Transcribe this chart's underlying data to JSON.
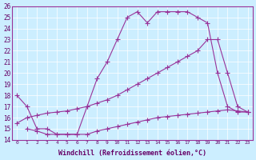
{
  "xlabel": "Windchill (Refroidissement éolien,°C)",
  "bg_color": "#cceeff",
  "line_color": "#993399",
  "xlim": [
    -0.5,
    23.5
  ],
  "ylim": [
    14,
    26
  ],
  "xticks": [
    0,
    1,
    2,
    3,
    4,
    5,
    6,
    7,
    8,
    9,
    10,
    11,
    12,
    13,
    14,
    15,
    16,
    17,
    18,
    19,
    20,
    21,
    22,
    23
  ],
  "yticks": [
    14,
    15,
    16,
    17,
    18,
    19,
    20,
    21,
    22,
    23,
    24,
    25,
    26
  ],
  "curve1_x": [
    0,
    1,
    2,
    3,
    4,
    5,
    6,
    7,
    8,
    9,
    10,
    11,
    12,
    13,
    14,
    15,
    16,
    17,
    18,
    19,
    20,
    21,
    22,
    23
  ],
  "curve1_y": [
    18.0,
    17.0,
    15.0,
    15.0,
    14.5,
    14.5,
    14.5,
    17.0,
    19.5,
    21.0,
    23.0,
    25.0,
    25.5,
    24.5,
    25.5,
    25.5,
    25.5,
    25.5,
    25.0,
    24.5,
    20.0,
    17.0,
    16.5,
    16.5
  ],
  "curve2_x": [
    0,
    1,
    2,
    3,
    4,
    5,
    6,
    7,
    8,
    9,
    10,
    11,
    12,
    13,
    14,
    15,
    16,
    17,
    18,
    19,
    20,
    21,
    22,
    23
  ],
  "curve2_y": [
    15.5,
    16.0,
    16.2,
    16.4,
    16.5,
    16.6,
    16.8,
    17.0,
    17.3,
    17.6,
    18.0,
    18.5,
    19.0,
    19.5,
    20.0,
    20.5,
    21.0,
    21.5,
    22.0,
    23.0,
    23.0,
    20.0,
    17.0,
    16.5
  ],
  "curve3_x": [
    1,
    2,
    3,
    4,
    5,
    6,
    7,
    8,
    9,
    10,
    11,
    12,
    13,
    14,
    15,
    16,
    17,
    18,
    19,
    20,
    21,
    22,
    23
  ],
  "curve3_y": [
    15.0,
    14.8,
    14.5,
    14.5,
    14.5,
    14.5,
    14.5,
    14.8,
    15.0,
    15.2,
    15.4,
    15.6,
    15.8,
    16.0,
    16.1,
    16.2,
    16.3,
    16.4,
    16.5,
    16.6,
    16.7,
    16.6,
    16.5
  ]
}
